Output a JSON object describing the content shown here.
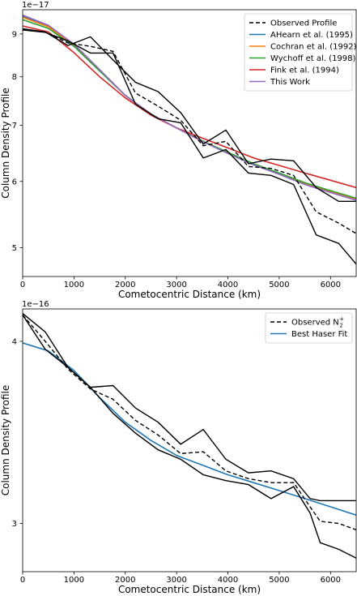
{
  "chart_data": [
    {
      "type": "line",
      "scale_label": "1e−17",
      "xlabel": "Cometocentric Distance (km)",
      "ylabel": "Column Density Profile",
      "xlim": [
        0,
        6500
      ],
      "ylim": [
        4.62,
        9.62
      ],
      "y_scale": "log",
      "xticks": [
        0,
        1000,
        2000,
        3000,
        4000,
        5000,
        6000
      ],
      "xtick_labels": [
        "0",
        "1000",
        "2000",
        "3000",
        "4000",
        "5000",
        "6000"
      ],
      "yticks": [
        5,
        6,
        7,
        8,
        9
      ],
      "ytick_labels": [
        "5",
        "6",
        "7",
        "8",
        "9"
      ],
      "grid": false,
      "legend_position": "top-right",
      "legend": [
        {
          "label": "Observed Profile",
          "color": "#000000",
          "dash": true
        },
        {
          "label": "AHearn et al. (1995)",
          "color": "#1f77b4",
          "dash": false
        },
        {
          "label": "Cochran et al. (1992)",
          "color": "#ff7f0e",
          "dash": false
        },
        {
          "label": "Wychoff et al. (1998)",
          "color": "#2ca02c",
          "dash": false
        },
        {
          "label": "Fink et al. (1994)",
          "color": "#d62728",
          "dash": false
        },
        {
          "label": "This Work",
          "color": "#9467bd",
          "dash": false
        }
      ],
      "observed": {
        "x": [
          0,
          440,
          880,
          1320,
          1760,
          2200,
          2640,
          3080,
          3520,
          3960,
          4400,
          4840,
          5280,
          5720,
          6160,
          6500
        ],
        "y": [
          9.1,
          9.05,
          8.78,
          8.7,
          8.58,
          7.65,
          7.38,
          7.1,
          6.62,
          6.7,
          6.25,
          6.22,
          6.1,
          5.52,
          5.35,
          5.2
        ]
      },
      "upper_bound": {
        "x": [
          0,
          440,
          880,
          1320,
          1760,
          2200,
          2640,
          3080,
          3520,
          3960,
          4400,
          4840,
          5280,
          5720,
          6160,
          6500
        ],
        "y": [
          9.13,
          9.05,
          8.72,
          8.93,
          8.38,
          7.88,
          7.68,
          7.25,
          6.65,
          6.91,
          6.3,
          6.38,
          6.35,
          5.9,
          5.68,
          5.68
        ]
      },
      "lower_bound": {
        "x": [
          0,
          440,
          880,
          1320,
          1760,
          2200,
          2640,
          3080,
          3520,
          3960,
          4400,
          4840,
          5280,
          5720,
          6160,
          6500
        ],
        "y": [
          9.1,
          9.04,
          8.83,
          8.54,
          8.54,
          7.42,
          7.13,
          7.05,
          6.4,
          6.55,
          6.14,
          6.1,
          5.95,
          5.18,
          5.06,
          4.78
        ]
      },
      "series": [
        {
          "name": "AHearn et al. (1995)",
          "color": "#1f77b4",
          "x": [
            0,
            500,
            1000,
            1500,
            2000,
            2500,
            3000,
            3500,
            4000,
            4500,
            5000,
            5500,
            6000,
            6500
          ],
          "y": [
            9.45,
            9.2,
            8.74,
            8.15,
            7.6,
            7.22,
            6.95,
            6.7,
            6.48,
            6.28,
            6.12,
            5.95,
            5.82,
            5.7
          ]
        },
        {
          "name": "Cochran et al. (1992)",
          "color": "#ff7f0e",
          "x": [
            0,
            500,
            1000,
            1500,
            2000,
            2500,
            3000,
            3500,
            4000,
            4500,
            5000,
            5500,
            6000,
            6500
          ],
          "y": [
            9.42,
            9.18,
            8.72,
            8.14,
            7.6,
            7.22,
            6.95,
            6.7,
            6.49,
            6.29,
            6.13,
            5.97,
            5.84,
            5.72
          ]
        },
        {
          "name": "Wychoff et al. (1998)",
          "color": "#2ca02c",
          "x": [
            0,
            500,
            1000,
            1500,
            2000,
            2500,
            3000,
            3500,
            4000,
            4500,
            5000,
            5500,
            6000,
            6500
          ],
          "y": [
            9.36,
            9.14,
            8.7,
            8.13,
            7.6,
            7.22,
            6.95,
            6.71,
            6.5,
            6.3,
            6.14,
            5.98,
            5.85,
            5.73
          ]
        },
        {
          "name": "Fink et al. (1994)",
          "color": "#d62728",
          "x": [
            0,
            500,
            1000,
            1500,
            2000,
            2500,
            3000,
            3500,
            4000,
            4500,
            5000,
            5500,
            6000,
            6500
          ],
          "y": [
            9.2,
            9.05,
            8.55,
            8.0,
            7.55,
            7.2,
            6.95,
            6.76,
            6.58,
            6.4,
            6.27,
            6.14,
            6.02,
            5.9
          ]
        },
        {
          "name": "This Work",
          "color": "#9467bd",
          "x": [
            0,
            500,
            1000,
            1500,
            2000,
            2500,
            3000,
            3500,
            4000,
            4500,
            5000,
            5500,
            6000,
            6500
          ],
          "y": [
            9.48,
            9.22,
            8.75,
            8.16,
            7.6,
            7.22,
            6.95,
            6.7,
            6.48,
            6.28,
            6.12,
            5.95,
            5.82,
            5.7
          ]
        }
      ]
    },
    {
      "type": "line",
      "scale_label": "1e−16",
      "xlabel": "Cometocentric Distance (km)",
      "ylabel": "Column Density Profile",
      "xlim": [
        0,
        6500
      ],
      "ylim": [
        2.78,
        4.21
      ],
      "y_scale": "log",
      "xticks": [
        0,
        1000,
        2000,
        3000,
        4000,
        5000,
        6000
      ],
      "xtick_labels": [
        "0",
        "1000",
        "2000",
        "3000",
        "4000",
        "5000",
        "6000"
      ],
      "yticks": [
        3,
        4
      ],
      "ytick_labels": [
        "3",
        "4"
      ],
      "grid": false,
      "legend_position": "top-right",
      "legend": [
        {
          "label": "Observed N",
          "sub": "2",
          "sup": "+",
          "color": "#000000",
          "dash": true
        },
        {
          "label": "Best Haser Fit",
          "color": "#1f77b4",
          "dash": false
        }
      ],
      "observed": {
        "x": [
          0,
          440,
          880,
          1320,
          1760,
          2200,
          2640,
          3080,
          3520,
          3960,
          4400,
          4840,
          5280,
          5600,
          5800,
          6160,
          6500
        ],
        "y": [
          4.17,
          4.0,
          3.83,
          3.71,
          3.65,
          3.53,
          3.45,
          3.35,
          3.36,
          3.26,
          3.22,
          3.2,
          3.2,
          3.08,
          3.01,
          3.0,
          2.97
        ]
      },
      "upper_bound": {
        "x": [
          0,
          440,
          880,
          1320,
          1760,
          2200,
          2640,
          3080,
          3520,
          3960,
          4400,
          4840,
          5280,
          5600,
          5800,
          6160,
          6500
        ],
        "y": [
          4.18,
          4.06,
          3.84,
          3.72,
          3.73,
          3.6,
          3.52,
          3.4,
          3.48,
          3.32,
          3.25,
          3.26,
          3.22,
          3.12,
          3.11,
          3.11,
          3.11
        ]
      },
      "lower_bound": {
        "x": [
          0,
          440,
          880,
          1320,
          1760,
          2200,
          2640,
          3080,
          3520,
          3960,
          4400,
          4840,
          5280,
          5600,
          5800,
          6160,
          6500
        ],
        "y": [
          4.17,
          3.95,
          3.84,
          3.72,
          3.57,
          3.46,
          3.37,
          3.32,
          3.24,
          3.21,
          3.19,
          3.12,
          3.18,
          3.05,
          2.91,
          2.88,
          2.84
        ]
      },
      "series": [
        {
          "name": "Best Haser Fit",
          "color": "#1f77b4",
          "x": [
            0,
            500,
            1000,
            1500,
            2000,
            2500,
            3000,
            3500,
            4000,
            4500,
            5000,
            5500,
            6000,
            6500
          ],
          "y": [
            3.99,
            3.94,
            3.82,
            3.66,
            3.52,
            3.42,
            3.34,
            3.29,
            3.24,
            3.2,
            3.16,
            3.12,
            3.08,
            3.04
          ]
        }
      ]
    }
  ]
}
